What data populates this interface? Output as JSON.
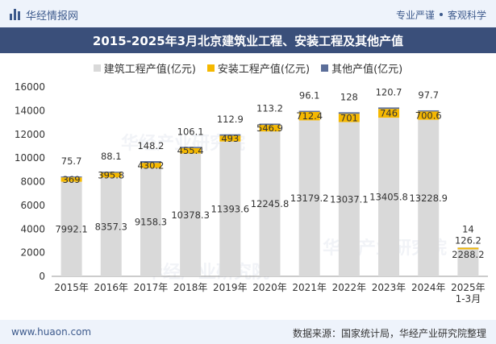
{
  "header": {
    "brand": "华经情报网",
    "tagline_left": "专业严谨",
    "tagline_right": "客观科学"
  },
  "footer": {
    "site": "www.huaon.com",
    "source": "数据来源：国家统计局，华经产业研究院整理"
  },
  "colors": {
    "construction": "#d9d9d9",
    "installation": "#f5b800",
    "other": "#5b6e99",
    "title_bg": "#3a4f7a"
  },
  "chart_data": {
    "type": "bar",
    "stacked": true,
    "title": "2015-2025年3月北京建筑业工程、安装工程及其他产值",
    "categories": [
      "2015年",
      "2016年",
      "2017年",
      "2018年",
      "2019年",
      "2020年",
      "2021年",
      "2022年",
      "2023年",
      "2024年",
      "2025年\n1-3月"
    ],
    "series": [
      {
        "name": "建筑工程产值(亿元)",
        "values": [
          7992.1,
          8357.3,
          9158.3,
          10378.3,
          11393.6,
          12245.8,
          13179.2,
          13037.1,
          13405.8,
          13228.9,
          2288.2
        ]
      },
      {
        "name": "安装工程产值(亿元)",
        "values": [
          369,
          395.8,
          430.2,
          455.4,
          493,
          546.9,
          712.4,
          701,
          746,
          700.6,
          126.2
        ]
      },
      {
        "name": "其他产值(亿元)",
        "values": [
          75.7,
          88.1,
          148.2,
          106.1,
          112.9,
          113.2,
          96.1,
          128,
          120.7,
          97.7,
          14
        ]
      }
    ],
    "ylim": [
      0,
      16000
    ],
    "yticks": [
      0,
      2000,
      4000,
      6000,
      8000,
      10000,
      12000,
      14000,
      16000
    ],
    "grid": false,
    "legend": "top-center"
  }
}
